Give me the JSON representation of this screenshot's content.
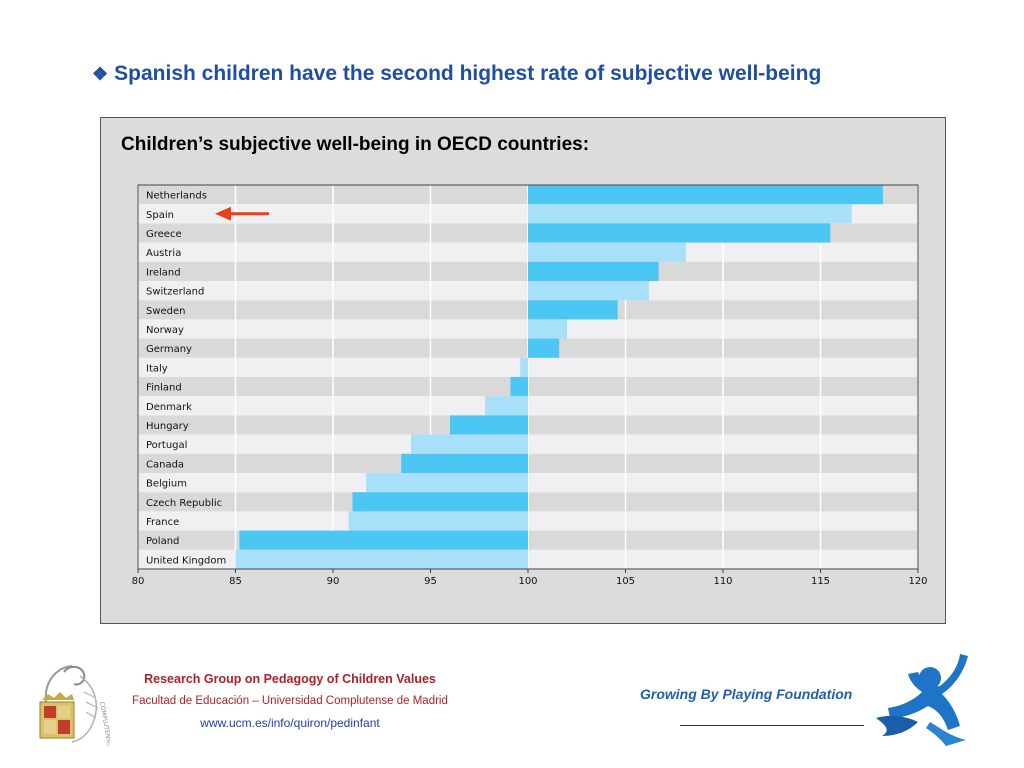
{
  "headline": {
    "bullet": "❖",
    "text": "Spanish children have the second highest rate of subjective well-being"
  },
  "chart_data": {
    "type": "bar",
    "orientation": "horizontal",
    "title": "Children’s subjective well-being in OECD countries:",
    "baseline": 100,
    "xlim": [
      80,
      120
    ],
    "xticks": [
      80,
      85,
      90,
      95,
      100,
      105,
      110,
      115,
      120
    ],
    "grid": true,
    "categories": [
      "Netherlands",
      "Spain",
      "Greece",
      "Austria",
      "Ireland",
      "Switzerland",
      "Sweden",
      "Norway",
      "Germany",
      "Italy",
      "Finland",
      "Denmark",
      "Hungary",
      "Portugal",
      "Canada",
      "Belgium",
      "Czech Republic",
      "France",
      "Poland",
      "United Kingdom"
    ],
    "values": [
      118.2,
      116.6,
      115.5,
      108.1,
      106.7,
      106.2,
      104.6,
      102.0,
      101.6,
      99.6,
      99.1,
      97.8,
      96.0,
      94.0,
      93.5,
      91.7,
      91.0,
      90.8,
      85.2,
      85.0
    ],
    "colors": {
      "bar_dark": "#4cc6f2",
      "bar_light": "#a8e0fa",
      "row_dark": "#d9d9d9",
      "row_light": "#f0f0f2",
      "arrow": "#e8401c"
    },
    "highlight": {
      "category": "Spain",
      "marker": "arrow"
    }
  },
  "footer": {
    "org": "Research Group on Pedagogy of Children Values",
    "faculty": "Facultad de Educación – Universidad Complutense de Madrid",
    "url": "www.ucm.es/info/quiron/pedinfant",
    "crest_text": "COMPLUTENSIS",
    "foundation": "Growing By Playing Foundation"
  }
}
